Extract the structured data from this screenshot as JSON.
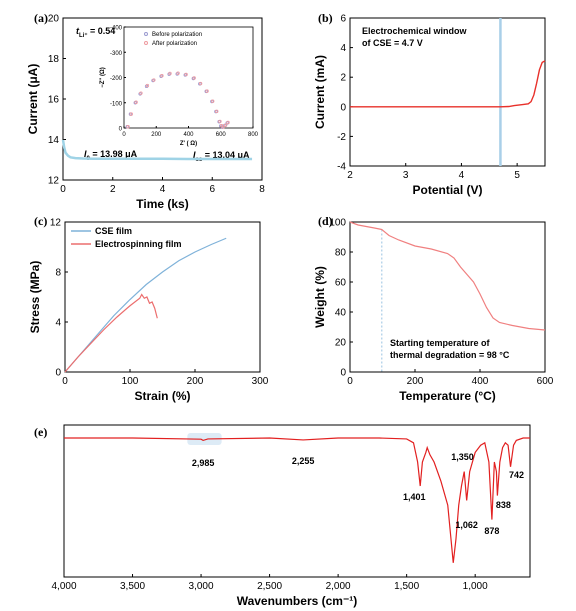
{
  "chart_data": [
    {
      "panel": "(a)",
      "type": "line",
      "xlabel": "Time (ks)",
      "ylabel": "Current (μA)",
      "xlim": [
        0,
        8
      ],
      "ylim": [
        12,
        20
      ],
      "xticks": [
        "0",
        "2",
        "4",
        "6",
        "8"
      ],
      "yticks": [
        "12",
        "14",
        "16",
        "18",
        "20"
      ],
      "annotations": [
        "t",
        "Li⁺",
        " = 0.54",
        "I",
        "0",
        " = 13.98 μA",
        "I",
        "ss",
        " = 13.04 μA"
      ],
      "series": [
        {
          "name": "",
          "color": "#9fd3e6",
          "x": [
            0,
            0.05,
            0.1,
            0.2,
            0.3,
            0.5,
            0.8,
            1.2,
            2,
            3,
            4,
            5,
            6,
            7,
            7.6
          ],
          "y": [
            13.98,
            13.6,
            13.35,
            13.2,
            13.12,
            13.08,
            13.06,
            13.05,
            13.05,
            13.05,
            13.05,
            13.04,
            13.04,
            13.04,
            13.04
          ]
        }
      ],
      "inset": {
        "type": "scatter",
        "xlabel": "Z' ( Ω)",
        "ylabel": "−Z'' (Ω)",
        "xlim": [
          0,
          800
        ],
        "ylim": [
          0,
          -400
        ],
        "xticks": [
          "0",
          "200",
          "400",
          "600",
          "800"
        ],
        "yticks": [
          "0",
          "-100",
          "-200",
          "-300",
          "-400"
        ],
        "legend": [
          "Before polarization",
          "After polarization"
        ],
        "series": [
          {
            "name": "Before polarization",
            "color": "#9a9ad0",
            "x": [
              20,
              40,
              70,
              100,
              140,
              180,
              230,
              280,
              330,
              380,
              430,
              470,
              510,
              545,
              570,
              590,
              600,
              610,
              625,
              640
            ],
            "y": [
              -5,
              -55,
              -100,
              -135,
              -165,
              -188,
              -205,
              -213,
              -214,
              -210,
              -196,
              -175,
              -145,
              -105,
              -65,
              -25,
              -8,
              -3,
              -10,
              -20
            ]
          },
          {
            "name": "After polarization",
            "color": "#ee9aa0",
            "x": [
              25,
              45,
              75,
              105,
              145,
              185,
              235,
              285,
              335,
              385,
              435,
              475,
              515,
              550,
              575,
              595,
              605,
              615,
              630,
              645
            ],
            "y": [
              -5,
              -55,
              -102,
              -138,
              -168,
              -190,
              -207,
              -216,
              -217,
              -212,
              -198,
              -176,
              -146,
              -106,
              -66,
              -26,
              -9,
              -4,
              -11,
              -22
            ]
          }
        ]
      }
    },
    {
      "panel": "(b)",
      "type": "line",
      "xlabel": "Potential (V)",
      "ylabel": "Current (mA)",
      "xlim": [
        2,
        5.5
      ],
      "ylim": [
        -4,
        6
      ],
      "xticks": [
        "2",
        "3",
        "4",
        "5"
      ],
      "yticks": [
        "-4",
        "-2",
        "0",
        "2",
        "4",
        "6"
      ],
      "annotations": [
        "Electrochemical window",
        "of CSE = 4.7 V"
      ],
      "marker_line_x": 4.7,
      "series": [
        {
          "name": "",
          "color": "#e8302a",
          "x": [
            2,
            3,
            4,
            4.7,
            4.85,
            4.95,
            5.1,
            5.2,
            5.25,
            5.3,
            5.35,
            5.4,
            5.45,
            5.5
          ],
          "y": [
            0,
            0,
            0,
            0,
            0.02,
            0.08,
            0.15,
            0.2,
            0.35,
            0.8,
            1.6,
            2.5,
            3.0,
            3.1
          ]
        }
      ]
    },
    {
      "panel": "(c)",
      "type": "line",
      "xlabel": "Strain (%)",
      "ylabel": "Stress (MPa)",
      "xlim": [
        0,
        300
      ],
      "ylim": [
        0,
        12
      ],
      "xticks": [
        "0",
        "100",
        "200",
        "300"
      ],
      "yticks": [
        "0",
        "4",
        "8",
        "12"
      ],
      "legend": [
        "CSE film",
        "Electrospinning film"
      ],
      "series": [
        {
          "name": "CSE film",
          "color": "#7fb2d9",
          "x": [
            0,
            25,
            50,
            75,
            100,
            125,
            150,
            175,
            200,
            225,
            248
          ],
          "y": [
            0,
            1.5,
            3.0,
            4.5,
            5.8,
            7.0,
            8.0,
            8.9,
            9.6,
            10.2,
            10.7
          ]
        },
        {
          "name": "Electrospinning film",
          "color": "#ec6e6e",
          "x": [
            0,
            20,
            40,
            60,
            80,
            100,
            115,
            118,
            122,
            126,
            130,
            134,
            138,
            142
          ],
          "y": [
            0,
            1.2,
            2.3,
            3.4,
            4.4,
            5.3,
            5.9,
            6.2,
            5.9,
            6.0,
            5.5,
            5.6,
            5.1,
            4.3
          ]
        }
      ]
    },
    {
      "panel": "(d)",
      "type": "line",
      "xlabel": "Temperature (°C)",
      "ylabel": "Weight (%)",
      "xlim": [
        0,
        600
      ],
      "ylim": [
        0,
        100
      ],
      "xticks": [
        "0",
        "200",
        "400",
        "600"
      ],
      "yticks": [
        "0",
        "20",
        "40",
        "60",
        "80",
        "100"
      ],
      "annotations": [
        "Starting temperature of",
        "thermal degradation = 98 °C"
      ],
      "marker_line_x": 98,
      "series": [
        {
          "name": "",
          "color": "#f08080",
          "x": [
            0,
            25,
            50,
            75,
            98,
            120,
            150,
            200,
            250,
            300,
            320,
            340,
            360,
            380,
            400,
            420,
            440,
            460,
            500,
            550,
            600
          ],
          "y": [
            100,
            98,
            97,
            96,
            95,
            91,
            88,
            84,
            82,
            79,
            76,
            70,
            65,
            60,
            52,
            43,
            36,
            33,
            31,
            29,
            28
          ]
        }
      ]
    },
    {
      "panel": "(e)",
      "type": "line",
      "xlabel": "Wavenumbers (cm⁻¹)",
      "ylabel": "",
      "xlim": [
        4000,
        600
      ],
      "xticks": [
        "4,000",
        "3,500",
        "3,000",
        "2,500",
        "2,000",
        "1,500",
        "1,000"
      ],
      "peak_labels": [
        {
          "label": "2,985",
          "x": 2985
        },
        {
          "label": "2,255",
          "x": 2255
        },
        {
          "label": "1,401",
          "x": 1401
        },
        {
          "label": "1,350",
          "x": 1350
        },
        {
          "label": "1,062",
          "x": 1062
        },
        {
          "label": "878",
          "x": 878
        },
        {
          "label": "838",
          "x": 838
        },
        {
          "label": "742",
          "x": 742
        }
      ],
      "series": [
        {
          "name": "",
          "color": "#e22020",
          "x": [
            4000,
            3500,
            3000,
            2985,
            2950,
            2500,
            2255,
            2000,
            1700,
            1500,
            1450,
            1420,
            1401,
            1385,
            1360,
            1350,
            1330,
            1300,
            1250,
            1200,
            1180,
            1160,
            1140,
            1120,
            1100,
            1080,
            1062,
            1040,
            1000,
            960,
            930,
            900,
            878,
            860,
            845,
            838,
            820,
            800,
            780,
            760,
            742,
            720,
            700,
            650,
            600
          ],
          "y": [
            100,
            100,
            99.5,
            99,
            99.6,
            100,
            99.2,
            100,
            100,
            99.6,
            98,
            90,
            80,
            90,
            94,
            96,
            93,
            90,
            82,
            72,
            60,
            48,
            58,
            72,
            80,
            86,
            74,
            86,
            94,
            97,
            98,
            90,
            66,
            90,
            86,
            76,
            90,
            96,
            98,
            97,
            88,
            97,
            99,
            100,
            100
          ]
        }
      ]
    }
  ]
}
